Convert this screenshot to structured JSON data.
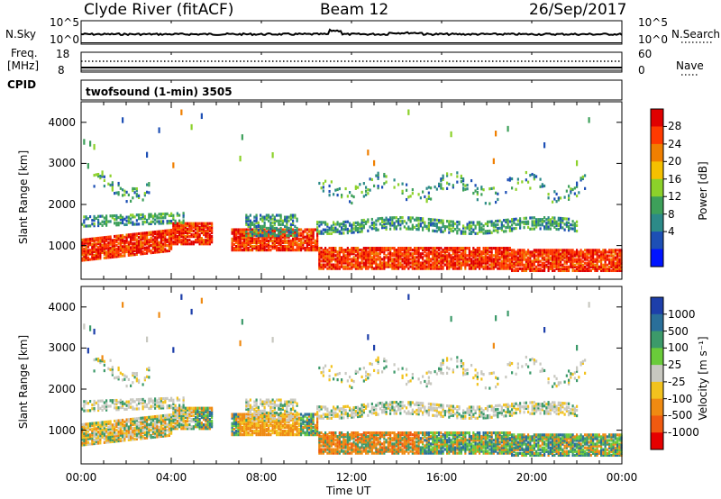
{
  "header": {
    "station": "Clyde River (fitACF)",
    "beam": "Beam 12",
    "date": "26/Sep/2017"
  },
  "top_panels": {
    "nsky_label": "N.Sky",
    "nsky_ticks": [
      "10^5",
      "10^0"
    ],
    "nsearch_label": "N.Search",
    "nsearch_ticks": [
      "10^5",
      "10^0"
    ],
    "freq_label_top": "Freq.",
    "freq_label_unit": "[MHz]",
    "freq_ticks": [
      "18",
      "8"
    ],
    "nave_label": "Nave",
    "nave_ticks": [
      "60",
      "0"
    ],
    "cpid_label": "CPID",
    "cpid_text": "twofsound (1-min) 3505"
  },
  "chart_data": [
    {
      "type": "heatmap",
      "name": "power",
      "ylabel": "Slant Range [km]",
      "yticks": [
        "4000",
        "3000",
        "2000",
        "1000"
      ],
      "xticks": [
        "00:00",
        "04:00",
        "08:00",
        "12:00",
        "16:00",
        "20:00",
        "00:00"
      ],
      "ylim": [
        180,
        4500
      ],
      "xlim_hours": [
        0,
        24
      ],
      "colorbar_label": "Power [dB]",
      "colorbar_ticks": [
        "28",
        "24",
        "20",
        "16",
        "12",
        "8",
        "4"
      ],
      "colors_top_to_bottom": [
        "#e00000",
        "#ff3a00",
        "#f07f00",
        "#f5c000",
        "#8cd12a",
        "#3da05a",
        "#2c8a88",
        "#1d4fb5",
        "#0014ff"
      ]
    },
    {
      "type": "heatmap",
      "name": "velocity",
      "ylabel": "Slant Range [km]",
      "yticks": [
        "4000",
        "3000",
        "2000",
        "1000"
      ],
      "xticks": [
        "00:00",
        "04:00",
        "08:00",
        "12:00",
        "16:00",
        "20:00",
        "00:00"
      ],
      "xlabel": "Time UT",
      "ylim": [
        180,
        4500
      ],
      "xlim_hours": [
        0,
        24
      ],
      "colorbar_label": "Velocity [m s⁻¹]",
      "colorbar_ticks": [
        "1000",
        "500",
        "100",
        "25",
        "-25",
        "-100",
        "-500",
        "-1000"
      ],
      "colors_top_to_bottom": [
        "#1d3faa",
        "#2a6f9a",
        "#3c9a6a",
        "#6acb3a",
        "#c8c8c0",
        "#f2c21e",
        "#ef8a12",
        "#f05a10",
        "#e60000"
      ]
    }
  ]
}
